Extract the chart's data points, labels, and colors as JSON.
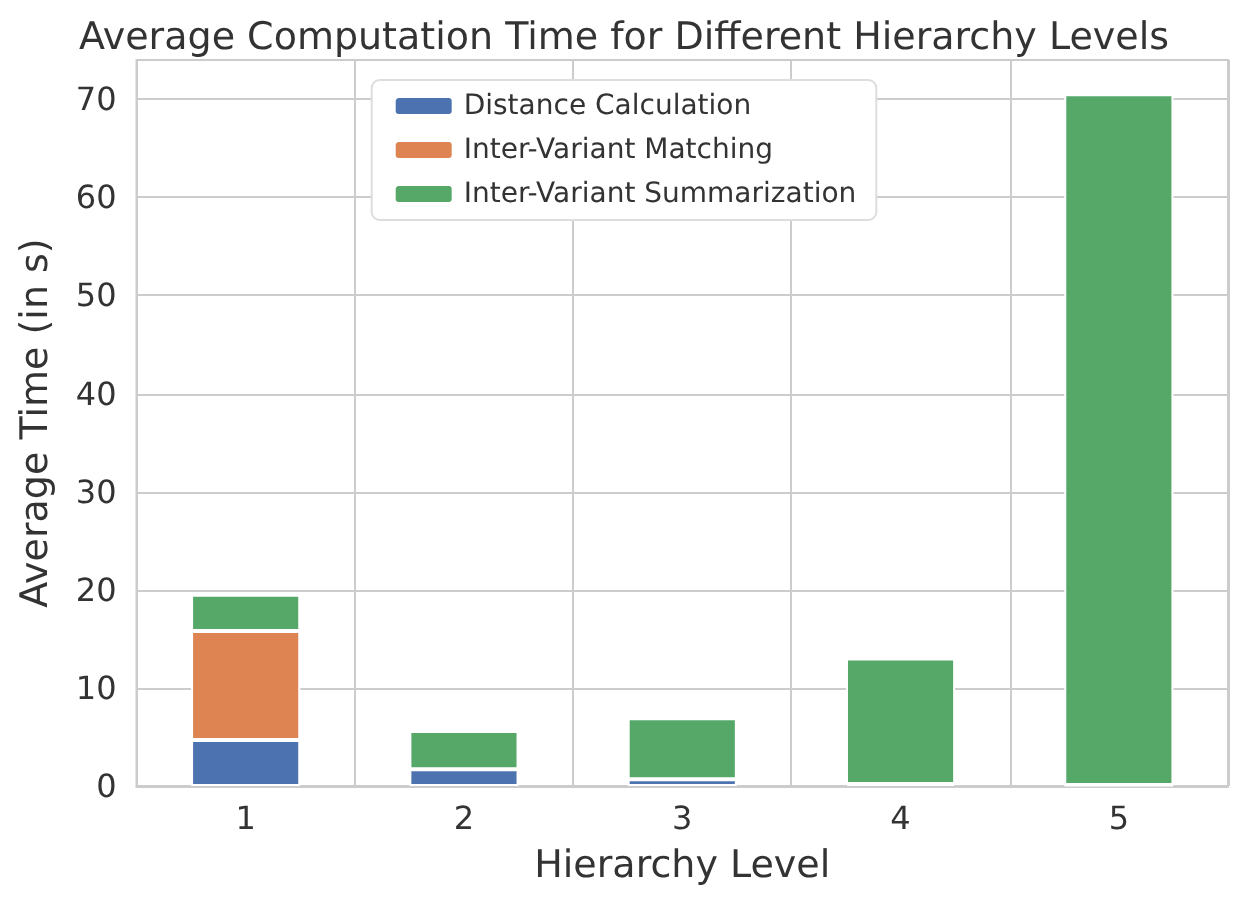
{
  "chart_data": {
    "type": "bar",
    "title": "Average Computation Time for Different Hierarchy Levels",
    "xlabel": "Hierarchy Level",
    "ylabel": "Average Time (in s)",
    "categories": [
      "1",
      "2",
      "3",
      "4",
      "5"
    ],
    "stacked": true,
    "series": [
      {
        "name": "Distance Calculation",
        "color": "#4c72b0",
        "values": [
          4.7,
          1.7,
          0.7,
          0.2,
          0.1
        ]
      },
      {
        "name": "Inter-Variant Matching",
        "color": "#dd8452",
        "values": [
          11.1,
          null,
          0,
          0,
          0
        ]
      },
      {
        "name": "Inter-Variant Summarization",
        "color": "#55a868",
        "values": [
          3.7,
          3.9,
          6.2,
          12.8,
          70.4
        ]
      }
    ],
    "ylim": [
      0,
      74
    ],
    "yticks": [
      0,
      10,
      20,
      30,
      40,
      50,
      60,
      70
    ],
    "grid": true,
    "legend": "top"
  }
}
